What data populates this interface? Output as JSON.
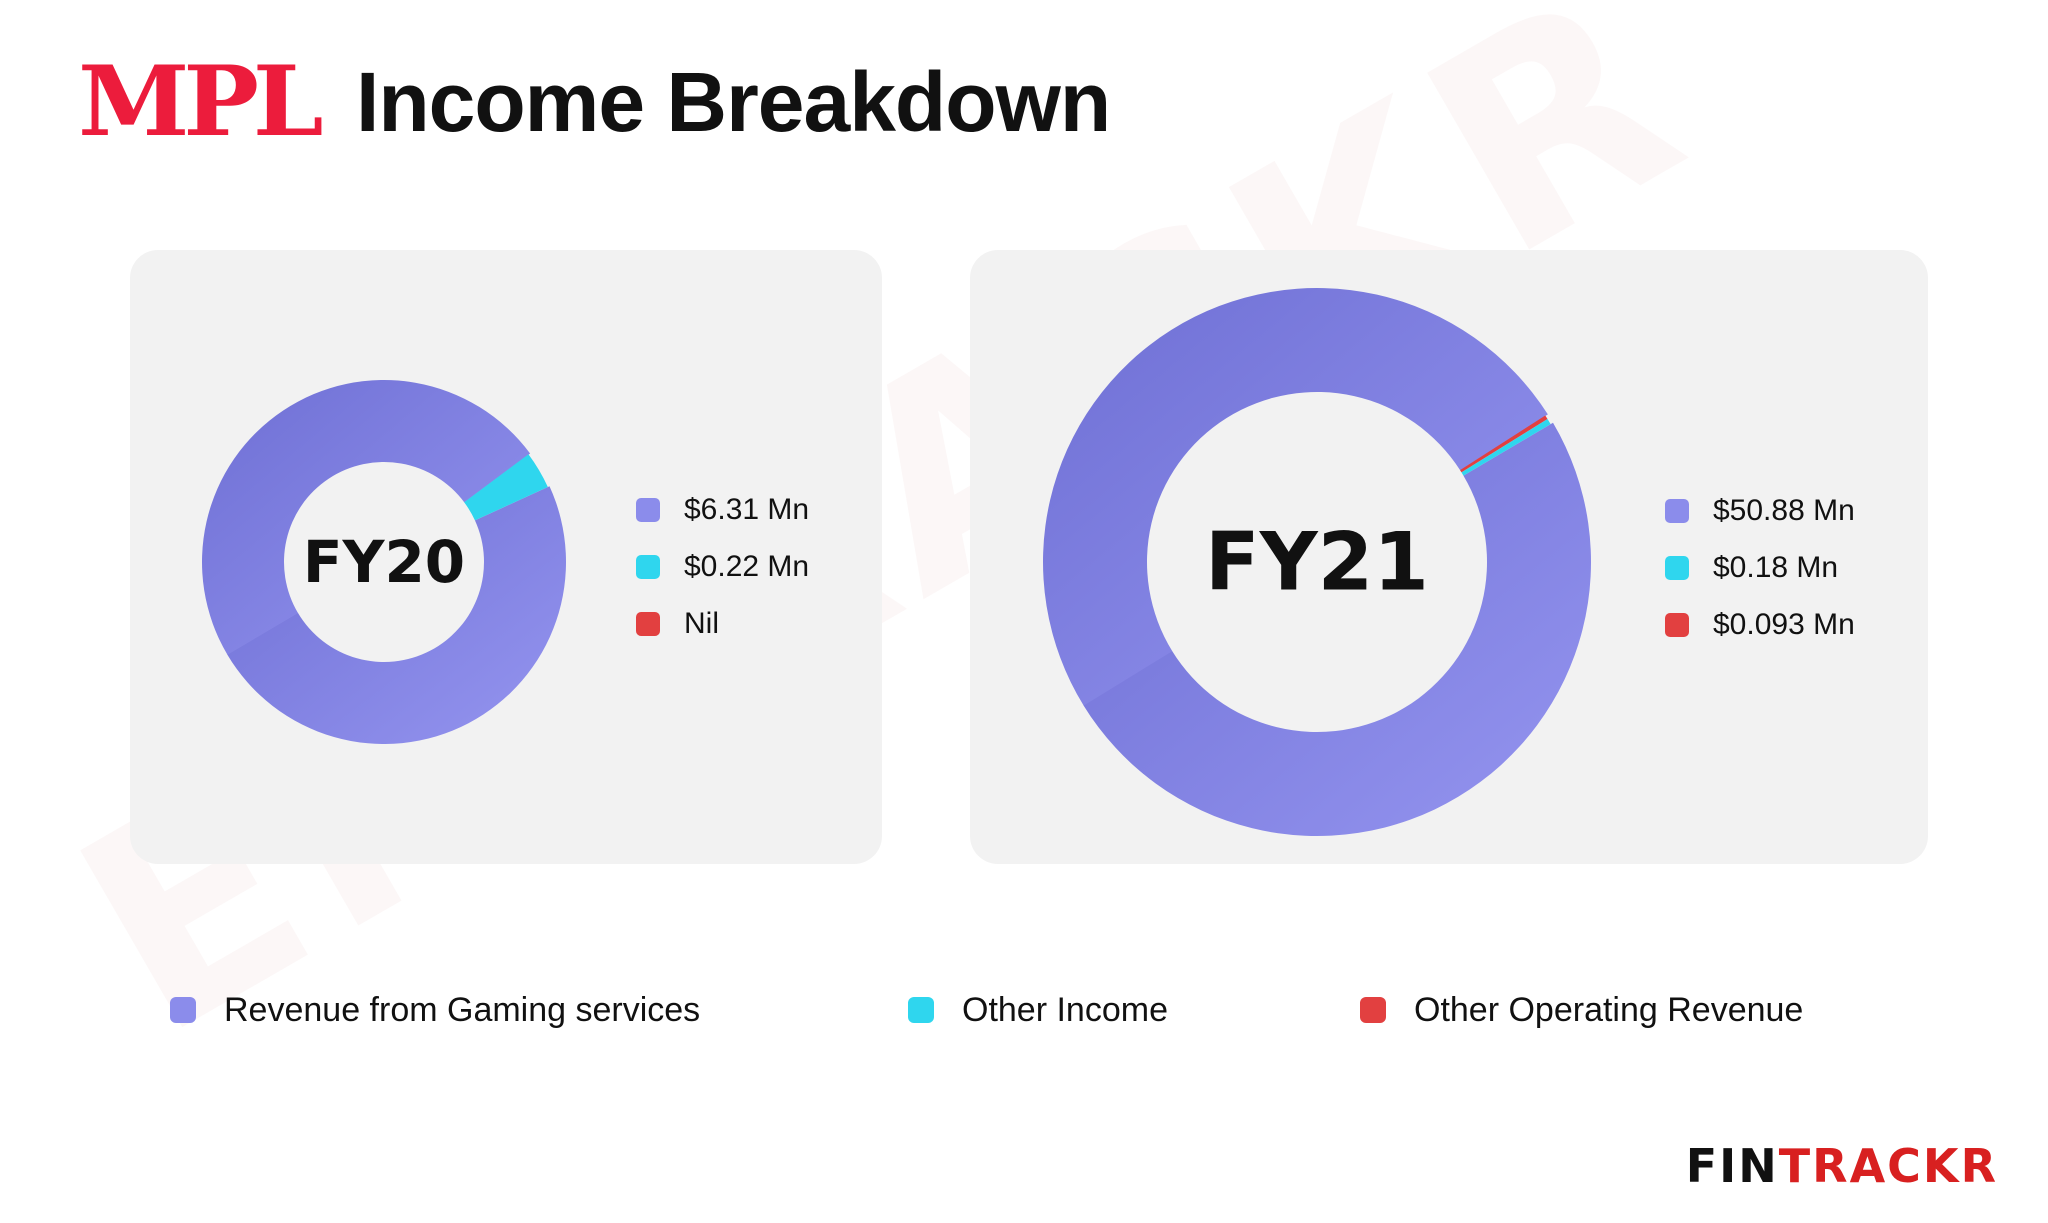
{
  "header": {
    "logo_text": "MPL",
    "title": "Income Breakdown"
  },
  "colors": {
    "revenue": "#8b8ceb",
    "revenue_dark": "#6a6bd0",
    "other_income": "#2fd6ee",
    "other_operating": "#e24040",
    "card_bg": "#f2f2f2",
    "logo_red": "#ec1c3c"
  },
  "chart_data": [
    {
      "type": "pie",
      "center_label": "FY20",
      "series": [
        {
          "name": "Revenue from Gaming services",
          "value": 6.31,
          "label": "$6.31 Mn"
        },
        {
          "name": "Other Income",
          "value": 0.22,
          "label": "$0.22 Mn"
        },
        {
          "name": "Other Operating Revenue",
          "value": 0,
          "label": "Nil"
        }
      ]
    },
    {
      "type": "pie",
      "center_label": "FY21",
      "series": [
        {
          "name": "Revenue from Gaming services",
          "value": 50.88,
          "label": "$50.88 Mn"
        },
        {
          "name": "Other Income",
          "value": 0.18,
          "label": "$0.18 Mn"
        },
        {
          "name": "Other Operating Revenue",
          "value": 0.093,
          "label": "$0.093 Mn"
        }
      ]
    }
  ],
  "legend": [
    {
      "label": "Revenue from Gaming services"
    },
    {
      "label": "Other Income"
    },
    {
      "label": "Other Operating Revenue"
    }
  ],
  "watermark": {
    "text": "ENTRACKR"
  },
  "footer": {
    "brand_part1": "FIN",
    "brand_part2": "TRACKR"
  }
}
